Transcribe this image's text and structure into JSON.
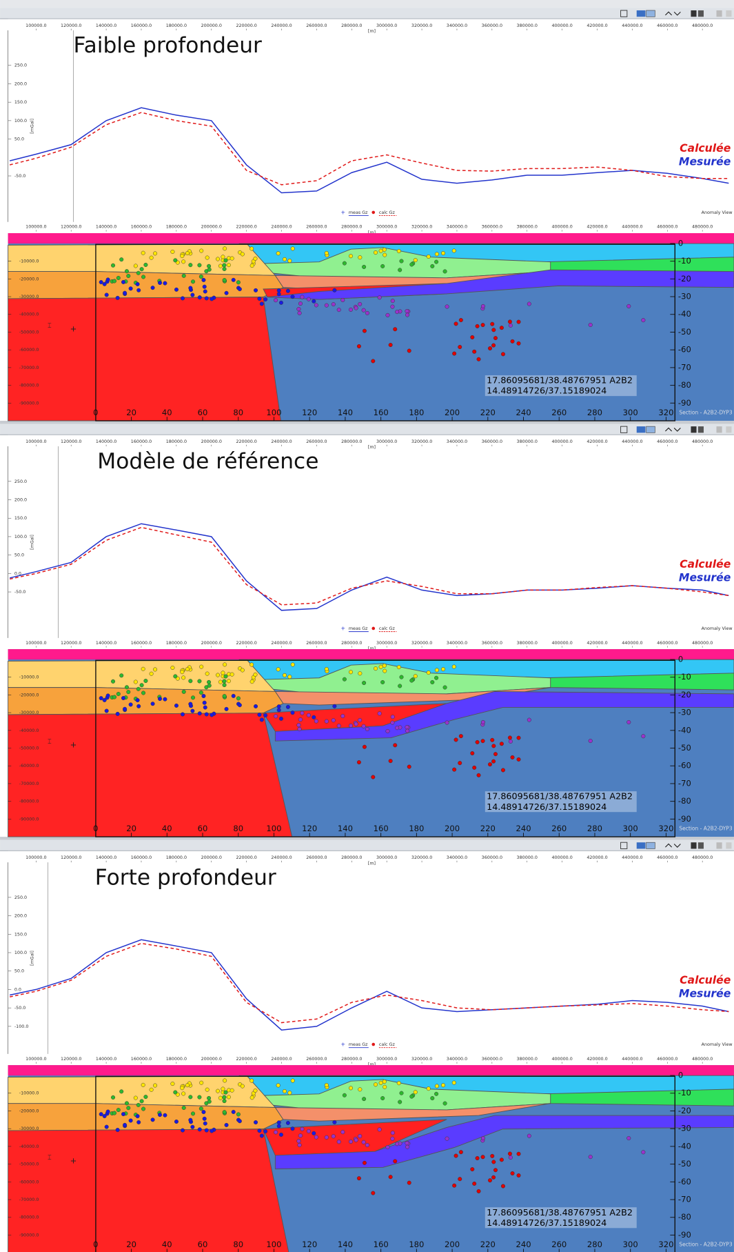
{
  "shared": {
    "x": [
      85000,
      100000,
      120000,
      140000,
      160000,
      180000,
      200000,
      220000,
      240000,
      260000,
      280000,
      300000,
      320000,
      340000,
      360000,
      380000,
      400000,
      420000,
      440000,
      460000,
      480000,
      495000
    ],
    "xlim": [
      84000,
      498000
    ],
    "ylim": [
      -175,
      345
    ],
    "profile_xticks": [
      {
        "value": 100000,
        "label": "100000.0"
      },
      {
        "value": 120000,
        "label": "120000.0"
      },
      {
        "value": 140000,
        "label": "140000.0"
      },
      {
        "value": 160000,
        "label": "160000.0"
      },
      {
        "value": 180000,
        "label": "180000.0"
      },
      {
        "value": 200000,
        "label": "200000.0"
      },
      {
        "value": 220000,
        "label": "220000.0"
      },
      {
        "value": 240000,
        "label": "240000.0"
      },
      {
        "value": 260000,
        "label": "260000.0"
      },
      {
        "value": 280000,
        "label": "280000.0"
      },
      {
        "value": 300000,
        "label": "300000.0"
      },
      {
        "value": 320000,
        "label": "320000.0"
      },
      {
        "value": 340000,
        "label": "340000.0"
      },
      {
        "value": 360000,
        "label": "360000.0"
      },
      {
        "value": 380000,
        "label": "380000.0"
      },
      {
        "value": 400000,
        "label": "400000.0"
      },
      {
        "value": 420000,
        "label": "420000.0"
      },
      {
        "value": 440000,
        "label": "440000.0"
      },
      {
        "value": 460000,
        "label": "460000.0"
      },
      {
        "value": 480000,
        "label": "480000.0"
      }
    ],
    "x_unit": "[m]",
    "y_unit": "[mGal]",
    "anomaly_view": "Anomaly View",
    "section_ylim": [
      -100000,
      5800
    ],
    "section_yticks": [
      {
        "value": -10000,
        "label": "-10000.0"
      },
      {
        "value": -20000,
        "label": "-20000.0"
      },
      {
        "value": -30000,
        "label": "-30000.0"
      },
      {
        "value": -40000,
        "label": "-40000.0"
      },
      {
        "value": -50000,
        "label": "-50000.0"
      },
      {
        "value": -60000,
        "label": "-60000.0"
      },
      {
        "value": -70000,
        "label": "-70000.0"
      },
      {
        "value": -80000,
        "label": "-80000.0"
      },
      {
        "value": -90000,
        "label": "-90000.0"
      }
    ],
    "depth_lim": [
      -100,
      5.8
    ],
    "depth_ticks": [
      0,
      -10,
      -20,
      -30,
      -40,
      -50,
      -60,
      -70,
      -80,
      -90
    ],
    "distance_lim": [
      -49.2,
      358.1
    ],
    "distance_ticks": [
      0,
      20,
      40,
      60,
      80,
      100,
      120,
      140,
      160,
      180,
      200,
      220,
      240,
      260,
      280,
      300,
      320
    ],
    "section_label": "Section - A2B2-DYP3",
    "coordinates": [
      "17.86095681/38.48767951 A2B2",
      "14.48914726/37.15189024"
    ]
  },
  "panels": [
    {
      "title": "Faible profondeur",
      "yticks": [
        {
          "value": 250,
          "label": "250.0"
        },
        {
          "value": 200,
          "label": "200.0"
        },
        {
          "value": 150,
          "label": "150.0"
        },
        {
          "value": 100,
          "label": "100.0"
        },
        {
          "value": 50,
          "label": "50.0"
        },
        {
          "value": -50,
          "label": "-50.0"
        }
      ],
      "series": [
        {
          "name": "meas Gz",
          "label": "Mesurée",
          "color": "#2233cc",
          "values": [
            -9,
            9,
            35,
            100,
            135,
            115,
            100,
            -20,
            -96,
            -91,
            -41,
            -13,
            -59,
            -70,
            -61,
            -48,
            -48,
            -41,
            -35,
            -43,
            -57,
            -70
          ]
        },
        {
          "name": "calc Gz",
          "label": "Calculée",
          "color": "#e01818",
          "values": [
            -20,
            -2,
            28,
            89,
            122,
            100,
            85,
            -35,
            -74,
            -63,
            -9,
            7,
            -15,
            -35,
            -37,
            -30,
            -30,
            -26,
            -35,
            -52,
            -57,
            -57
          ]
        }
      ]
    },
    {
      "title": "Modèle de référence",
      "yticks": [
        {
          "value": 250,
          "label": "250.0"
        },
        {
          "value": 200,
          "label": "200.0"
        },
        {
          "value": 150,
          "label": "150.0"
        },
        {
          "value": 100,
          "label": "100.0"
        },
        {
          "value": 50,
          "label": "50.0"
        },
        {
          "value": 0,
          "label": "0.0"
        },
        {
          "value": -50,
          "label": "-50.0"
        }
      ],
      "series": [
        {
          "name": "meas Gz",
          "label": "Mesurée",
          "color": "#2233cc",
          "values": [
            -12,
            5,
            30,
            100,
            135,
            118,
            100,
            -20,
            -100,
            -95,
            -45,
            -10,
            -45,
            -60,
            -55,
            -45,
            -45,
            -40,
            -33,
            -40,
            -45,
            -60
          ]
        },
        {
          "name": "calc Gz",
          "label": "Calculée",
          "color": "#e01818",
          "values": [
            -15,
            0,
            25,
            90,
            125,
            105,
            85,
            -30,
            -85,
            -80,
            -40,
            -20,
            -35,
            -55,
            -55,
            -45,
            -45,
            -38,
            -33,
            -40,
            -50,
            -60
          ]
        }
      ]
    },
    {
      "title": "Forte profondeur",
      "yticks": [
        {
          "value": 250,
          "label": "250.0"
        },
        {
          "value": 200,
          "label": "200.0"
        },
        {
          "value": 150,
          "label": "150.0"
        },
        {
          "value": 100,
          "label": "100.0"
        },
        {
          "value": 50,
          "label": "50.0"
        },
        {
          "value": 0,
          "label": "0.0"
        },
        {
          "value": -50,
          "label": "-50.0"
        },
        {
          "value": -100,
          "label": "-100.0"
        }
      ],
      "series": [
        {
          "name": "meas Gz",
          "label": "Mesurée",
          "color": "#2233cc",
          "values": [
            -15,
            0,
            30,
            100,
            135,
            118,
            100,
            -25,
            -110,
            -100,
            -50,
            -5,
            -50,
            -60,
            -55,
            -50,
            -45,
            -40,
            -30,
            -35,
            -45,
            -60
          ]
        },
        {
          "name": "calc Gz",
          "label": "Calculée",
          "color": "#e01818",
          "values": [
            -20,
            -5,
            25,
            90,
            125,
            110,
            90,
            -35,
            -90,
            -80,
            -35,
            -15,
            -30,
            -50,
            -55,
            -50,
            -45,
            -42,
            -38,
            -45,
            -55,
            -60
          ]
        }
      ]
    }
  ]
}
